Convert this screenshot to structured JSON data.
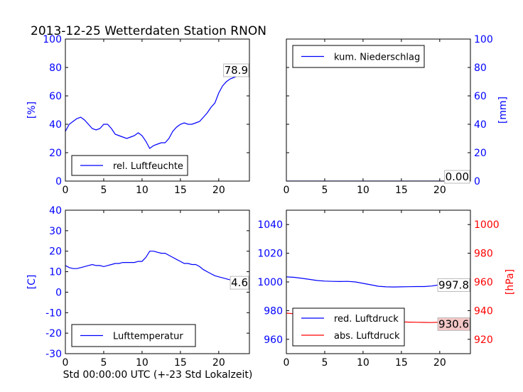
{
  "figure": {
    "title": "2013-12-25 Wetterdaten Station RNON",
    "xlabel": "Std 00:00:00 UTC (+-23 Std Lokalzeit)"
  },
  "colors": {
    "blue": "#0000ff",
    "red": "#ff0000",
    "black": "#000000",
    "frame": "#000000",
    "highlight_red": "#f4c7c7"
  },
  "chart_data": [
    {
      "id": "humidity",
      "type": "line",
      "ylabel": "[%]",
      "xlim": [
        0,
        24
      ],
      "ylim": [
        0,
        100
      ],
      "xticks": [
        0,
        5,
        10,
        15,
        20
      ],
      "yticks": [
        0,
        20,
        40,
        60,
        80,
        100
      ],
      "legend": "bottom-left",
      "series": [
        {
          "name": "rel. Luftfeuchte",
          "color": "#0000ff",
          "x": [
            0,
            0.5,
            1,
            1.5,
            2,
            2.5,
            3,
            3.5,
            4,
            4.5,
            5,
            5.5,
            6,
            6.5,
            7,
            7.5,
            8,
            8.5,
            9,
            9.5,
            10,
            10.5,
            11,
            11.5,
            12,
            12.5,
            13,
            13.5,
            14,
            14.5,
            15,
            15.5,
            16,
            16.5,
            17,
            17.5,
            18,
            18.5,
            19,
            19.5,
            20,
            20.5,
            21,
            21.5,
            22,
            22.5,
            23,
            23.5,
            24
          ],
          "y": [
            35,
            40,
            42,
            44,
            45,
            43,
            40,
            37,
            36,
            37,
            40,
            40,
            37,
            33,
            32,
            31,
            30,
            31,
            32,
            34,
            32,
            28,
            23,
            25,
            26,
            27,
            27,
            30,
            35,
            38,
            40,
            41,
            40,
            40,
            41,
            42,
            45,
            48,
            52,
            55,
            62,
            67,
            70,
            72,
            73,
            74,
            75,
            80,
            79
          ]
        }
      ],
      "end_label": "78.9"
    },
    {
      "id": "precip",
      "type": "line",
      "ylabel": "[mm]",
      "xlim": [
        0,
        24
      ],
      "ylim": [
        0,
        100
      ],
      "xticks": [
        0,
        5,
        10,
        15,
        20
      ],
      "yticks": [
        0,
        20,
        40,
        60,
        80,
        100
      ],
      "yaxis_side": "right",
      "legend": "top-left",
      "series": [
        {
          "name": "kum. Niederschlag",
          "color": "#0000ff",
          "x": [
            0,
            24
          ],
          "y": [
            0,
            0
          ]
        }
      ],
      "end_label": "0.00"
    },
    {
      "id": "temperature",
      "type": "line",
      "ylabel": "[C]",
      "xlim": [
        0,
        24
      ],
      "ylim": [
        -30,
        40
      ],
      "xticks": [
        0,
        5,
        10,
        15,
        20
      ],
      "yticks": [
        -30,
        -20,
        -10,
        0,
        10,
        20,
        30,
        40
      ],
      "legend": "bottom-left",
      "series": [
        {
          "name": "Lufttemperatur",
          "color": "#0000ff",
          "x": [
            0,
            0.5,
            1,
            1.5,
            2,
            2.5,
            3,
            3.5,
            4,
            4.5,
            5,
            5.5,
            6,
            6.5,
            7,
            7.5,
            8,
            8.5,
            9,
            9.5,
            10,
            10.5,
            11,
            11.5,
            12,
            12.5,
            13,
            13.5,
            14,
            14.5,
            15,
            15.5,
            16,
            16.5,
            17,
            17.5,
            18,
            18.5,
            19,
            19.5,
            20,
            20.5,
            21,
            21.5,
            22,
            22.5,
            23,
            23.5,
            24
          ],
          "y": [
            13,
            12,
            11.5,
            11.5,
            12,
            12.5,
            13,
            13.5,
            13,
            13,
            12.5,
            13,
            13.5,
            14,
            14,
            14.5,
            14.5,
            14.5,
            14.5,
            15,
            15,
            17,
            20,
            20,
            19.5,
            19,
            19,
            18,
            17,
            16,
            15,
            14,
            14,
            13.5,
            13.5,
            12.5,
            11,
            10,
            9,
            8,
            7.5,
            7,
            6.5,
            6,
            5.5,
            5,
            5,
            4.7,
            4.6
          ]
        }
      ],
      "end_label": "4.6"
    },
    {
      "id": "pressure",
      "type": "line",
      "ylabel": "[hPa]",
      "xlim": [
        0,
        24
      ],
      "ylim_left": [
        950,
        1050
      ],
      "ylim_right": [
        910,
        1010
      ],
      "xticks": [
        0,
        5,
        10,
        15,
        20
      ],
      "yticks_left": [
        960,
        980,
        1000,
        1020,
        1040
      ],
      "yticks_right": [
        920,
        940,
        960,
        980,
        1000
      ],
      "legend": "bottom-left",
      "series": [
        {
          "name": "red. Luftdruck",
          "color": "#0000ff",
          "axis": "left",
          "x": [
            0,
            1,
            2,
            3,
            4,
            5,
            6,
            7,
            8,
            9,
            10,
            11,
            12,
            13,
            14,
            15,
            16,
            17,
            18,
            19,
            20,
            21,
            22,
            23,
            24
          ],
          "y": [
            1003.5,
            1003.2,
            1002.5,
            1001.8,
            1001,
            1000.6,
            1000.4,
            1000.3,
            1000.4,
            1000,
            999,
            998,
            997,
            996.6,
            996.5,
            996.6,
            996.7,
            996.8,
            996.8,
            997.2,
            998,
            998.5,
            998.2,
            997.9,
            997.8
          ]
        },
        {
          "name": "abs. Luftdruck",
          "color": "#ff0000",
          "axis": "right",
          "x": [
            0,
            1,
            2,
            3,
            4,
            5,
            6,
            7,
            8,
            9,
            10,
            11,
            12,
            13,
            14,
            15,
            16,
            17,
            18,
            19,
            20,
            21,
            22,
            23,
            24
          ],
          "y": [
            938.2,
            937.8,
            937.2,
            936.8,
            936,
            935.7,
            935.5,
            935.6,
            935.6,
            935.4,
            934.6,
            933.6,
            933,
            932.5,
            932.3,
            932.2,
            932,
            931.9,
            931.8,
            931.7,
            932,
            932.3,
            931.9,
            931.2,
            930.6
          ]
        }
      ],
      "end_label": "997.8",
      "end_label_2": "930.6"
    }
  ]
}
